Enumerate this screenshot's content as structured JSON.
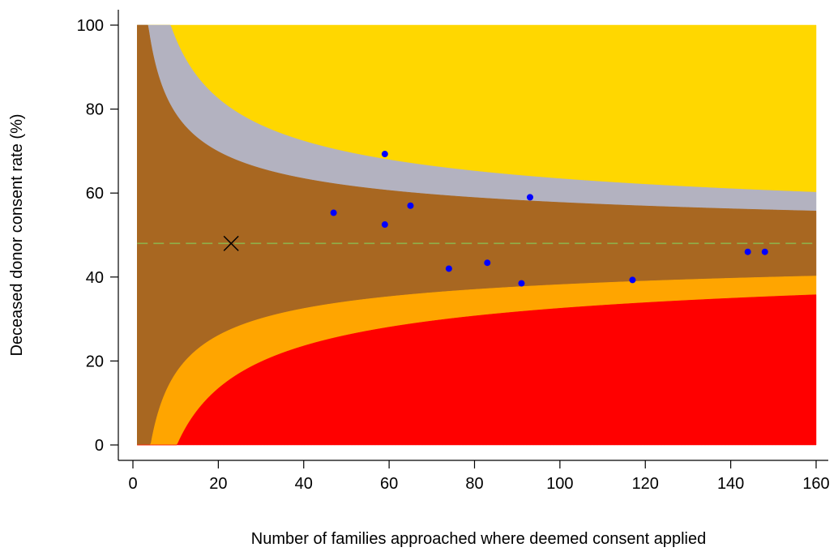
{
  "chart_data": {
    "type": "scatter",
    "title": "",
    "xlabel": "Number of families approached where deemed consent applied",
    "ylabel": "Deceased donor consent rate (%)",
    "xlim": [
      0,
      160
    ],
    "ylim": [
      0,
      100
    ],
    "xticks": [
      0,
      20,
      40,
      60,
      80,
      100,
      120,
      140,
      160
    ],
    "yticks": [
      0,
      20,
      40,
      60,
      80,
      100
    ],
    "x_tick_labels": [
      "0",
      "20",
      "40",
      "60",
      "80",
      "100",
      "120",
      "140",
      "160"
    ],
    "y_tick_labels": [
      "0",
      "20",
      "40",
      "60",
      "80",
      "100"
    ],
    "grid": false,
    "legend": "none",
    "reference_line": {
      "y": 48,
      "style": "dashed",
      "color": "#8fb04a"
    },
    "highlighted_point": {
      "x": 23,
      "y": 48,
      "marker": "x",
      "color": "#000000"
    },
    "funnel": {
      "type": "funnel",
      "center": 48,
      "x_range": [
        1,
        160
      ],
      "inner_z": 1.96,
      "outer_z": 3.09,
      "bands": [
        {
          "name": "above outer limit",
          "color": "#ffd700"
        },
        {
          "name": "between upper limits",
          "color": "#b3b2c0"
        },
        {
          "name": "within inner limits",
          "color": "#a86721"
        },
        {
          "name": "between lower limits",
          "color": "#ffa500"
        },
        {
          "name": "below outer limit",
          "color": "#ff0000"
        }
      ]
    },
    "series": [
      {
        "marker_color": "#0000ff",
        "points": [
          {
            "x": 47,
            "y": 55.3
          },
          {
            "x": 59,
            "y": 69.3
          },
          {
            "x": 59,
            "y": 52.5
          },
          {
            "x": 65,
            "y": 57
          },
          {
            "x": 74,
            "y": 42
          },
          {
            "x": 83,
            "y": 43.4
          },
          {
            "x": 91,
            "y": 38.5
          },
          {
            "x": 93,
            "y": 59
          },
          {
            "x": 117,
            "y": 39.3
          },
          {
            "x": 144,
            "y": 46
          },
          {
            "x": 148,
            "y": 46
          }
        ]
      }
    ]
  }
}
